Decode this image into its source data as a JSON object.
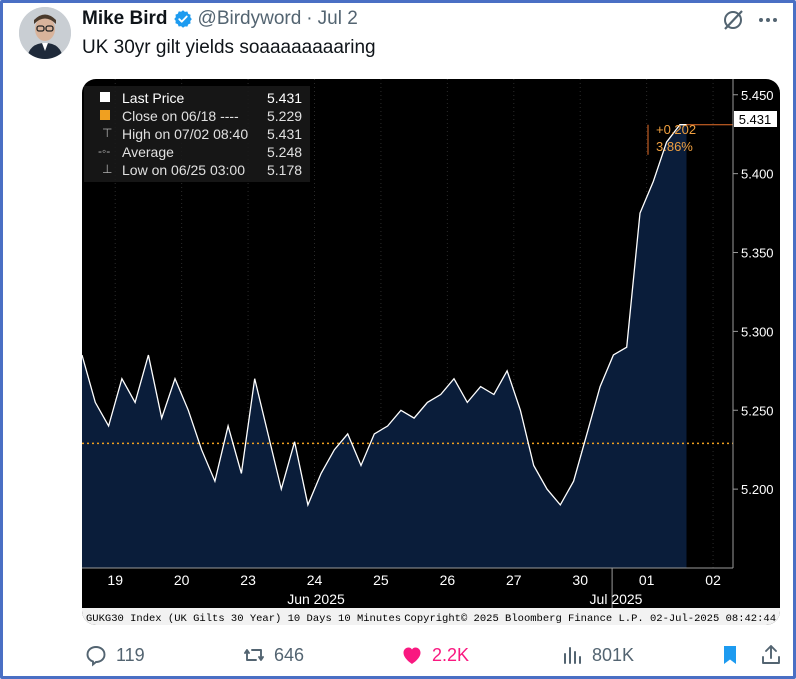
{
  "tweet": {
    "display_name": "Mike Bird",
    "handle": "@Birdyword",
    "separator": "·",
    "date": "Jul 2",
    "text": "UK 30yr gilt yields soaaaaaaaaring",
    "verified_color": "#1d9bf0"
  },
  "chart_data": {
    "type": "area",
    "title": "",
    "legend": [
      {
        "label": "Last Price",
        "value": "5.431"
      },
      {
        "label": "Close on 06/18 ----",
        "value": "5.229"
      },
      {
        "label": "High on 07/02 08:40",
        "value": "5.431"
      },
      {
        "label": "Average",
        "value": "5.248"
      },
      {
        "label": "Low on 06/25 03:00",
        "value": "5.178"
      }
    ],
    "legend_placement": "top-left",
    "ylim": [
      5.15,
      5.46
    ],
    "yticks": [
      "5.450",
      "5.400",
      "5.350",
      "5.300",
      "5.250",
      "5.200"
    ],
    "xticks": [
      "19",
      "20",
      "23",
      "24",
      "25",
      "26",
      "27",
      "30",
      "01",
      "02"
    ],
    "month_labels": [
      "Jun 2025",
      "Jul 2025"
    ],
    "reference_line": {
      "value": 5.229,
      "color": "#f0a020"
    },
    "last_price_label": "5.431",
    "change_label": "+0.202",
    "change_pct_label": "3.86%",
    "footer_left": "GUKG30 Index (UK Gilts 30 Year) 10 Days 10 Minutes",
    "footer_right": "Copyright© 2025 Bloomberg Finance L.P.   02-Jul-2025 08:42:44",
    "series": [
      {
        "x": [
          0,
          0.2,
          0.4,
          0.6,
          0.8,
          1.0,
          1.2,
          1.4,
          1.6,
          1.8,
          2.0,
          2.2,
          2.4,
          2.6,
          2.8,
          3.0,
          3.2,
          3.4,
          3.6,
          3.8,
          4.0,
          4.2,
          4.4,
          4.6,
          4.8,
          5.0,
          5.2,
          5.4,
          5.6,
          5.8,
          6.0,
          6.2,
          6.4,
          6.6,
          6.8,
          7.0,
          7.2,
          7.4,
          7.6,
          7.8,
          8.0,
          8.2,
          8.4,
          8.6,
          8.8,
          9.0,
          9.05,
          9.1
        ],
        "y": [
          5.285,
          5.255,
          5.24,
          5.27,
          5.255,
          5.285,
          5.245,
          5.27,
          5.25,
          5.225,
          5.205,
          5.24,
          5.21,
          5.27,
          5.235,
          5.2,
          5.23,
          5.19,
          5.21,
          5.225,
          5.235,
          5.215,
          5.235,
          5.24,
          5.25,
          5.245,
          5.255,
          5.26,
          5.27,
          5.255,
          5.265,
          5.26,
          5.275,
          5.25,
          5.215,
          5.2,
          5.19,
          5.205,
          5.235,
          5.265,
          5.285,
          5.29,
          5.375,
          5.395,
          5.42,
          5.431,
          5.431,
          5.431
        ]
      }
    ]
  },
  "actions": {
    "replies": "119",
    "reposts": "646",
    "likes": "2.2K",
    "views": "801K"
  }
}
